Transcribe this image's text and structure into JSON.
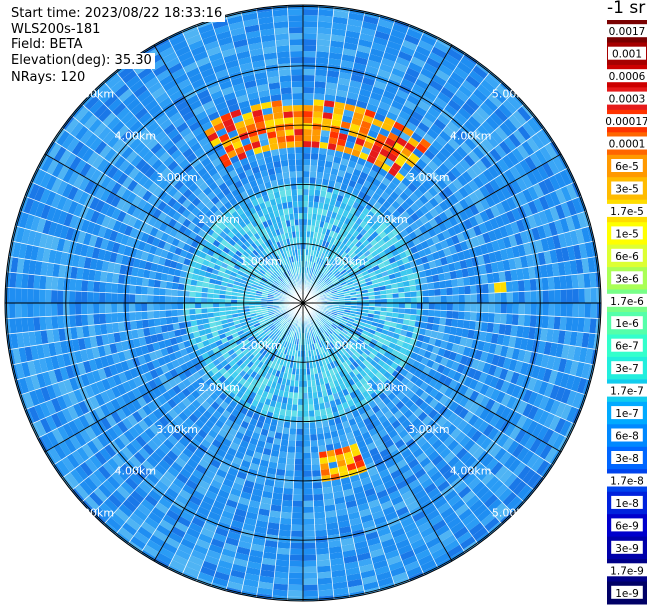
{
  "header": {
    "start_time": "Start time: 2023/08/22 18:33:16",
    "instrument": "WLS200s-181",
    "field": "Field: BETA",
    "elevation": "Elevation(deg): 35.30",
    "nrays": "NRays: 120"
  },
  "colorbar": {
    "title": "-1 sr",
    "labels": [
      "0.0017",
      "0.001",
      "0.0006",
      "0.0003",
      "0.00017",
      "0.0001",
      "6e-5",
      "3e-5",
      "1.7e-5",
      "1e-5",
      "6e-6",
      "3e-6",
      "1.7e-6",
      "1e-6",
      "6e-7",
      "3e-7",
      "1.7e-7",
      "1e-7",
      "6e-8",
      "3e-8",
      "1.7e-8",
      "1e-8",
      "6e-9",
      "3e-9",
      "1.7e-9",
      "1e-9"
    ],
    "colors": [
      "#7a0000",
      "#a60000",
      "#cc0000",
      "#e61a1a",
      "#ff3300",
      "#ff6600",
      "#ff9900",
      "#ffbb00",
      "#ffdd00",
      "#ffff00",
      "#ddff33",
      "#aaff55",
      "#77ff88",
      "#55ffaa",
      "#33ffcc",
      "#22eedd",
      "#11ccee",
      "#00aaff",
      "#0088ff",
      "#0066ff",
      "#0044ee",
      "#0022dd",
      "#0000cc",
      "#0000aa",
      "#000088",
      "#000066"
    ]
  },
  "chart_data": {
    "type": "heatmap",
    "projection": "polar (PPI scan)",
    "field": "BETA",
    "nrays": 120,
    "range_ring_labels": [
      "1.00km",
      "2.00km",
      "3.00km",
      "4.00km",
      "5.00km"
    ],
    "max_range_km": 5.0,
    "background_level": "1e-8 to 1e-7 (blue)",
    "inner_level": "1.7e-7 to 1e-6 (cyan) within ~2 km",
    "features": [
      {
        "label": "strong echo arc",
        "azimuth_deg_range": [
          330,
          40
        ],
        "range_km": [
          2.6,
          3.4
        ],
        "value_range": [
          "1.7e-5",
          "0.00017"
        ]
      },
      {
        "label": "strong echo patch",
        "azimuth_deg_range": [
          160,
          175
        ],
        "range_km": [
          2.5,
          3.0
        ],
        "value_range": [
          "1.7e-5",
          "0.0001"
        ]
      },
      {
        "label": "moderate echo",
        "azimuth_deg": 85,
        "range_km": 3.35,
        "value_range": [
          "3e-6",
          "1e-5"
        ]
      }
    ]
  }
}
